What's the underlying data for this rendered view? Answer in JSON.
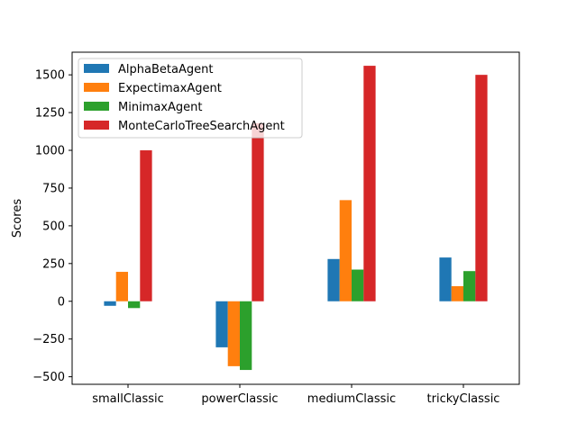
{
  "chart_data": {
    "type": "bar",
    "categories": [
      "smallClassic",
      "powerClassic",
      "mediumClassic",
      "trickyClassic"
    ],
    "series": [
      {
        "name": "AlphaBetaAgent",
        "color": "#1f77b4",
        "values": [
          -30,
          -305,
          280,
          290
        ]
      },
      {
        "name": "ExpectimaxAgent",
        "color": "#ff7f0e",
        "values": [
          195,
          -430,
          670,
          100
        ]
      },
      {
        "name": "MinimaxAgent",
        "color": "#2ca02c",
        "values": [
          -45,
          -455,
          210,
          200
        ]
      },
      {
        "name": "MonteCarloTreeSearchAgent",
        "color": "#d62728",
        "values": [
          1000,
          1180,
          1560,
          1500
        ]
      }
    ],
    "title": "",
    "xlabel": "",
    "ylabel": "Scores",
    "ylim": [
      -550,
      1650
    ],
    "yticks": [
      -500,
      -250,
      0,
      250,
      500,
      750,
      1000,
      1250,
      1500
    ],
    "grid": false,
    "legend_position": "top-left"
  }
}
